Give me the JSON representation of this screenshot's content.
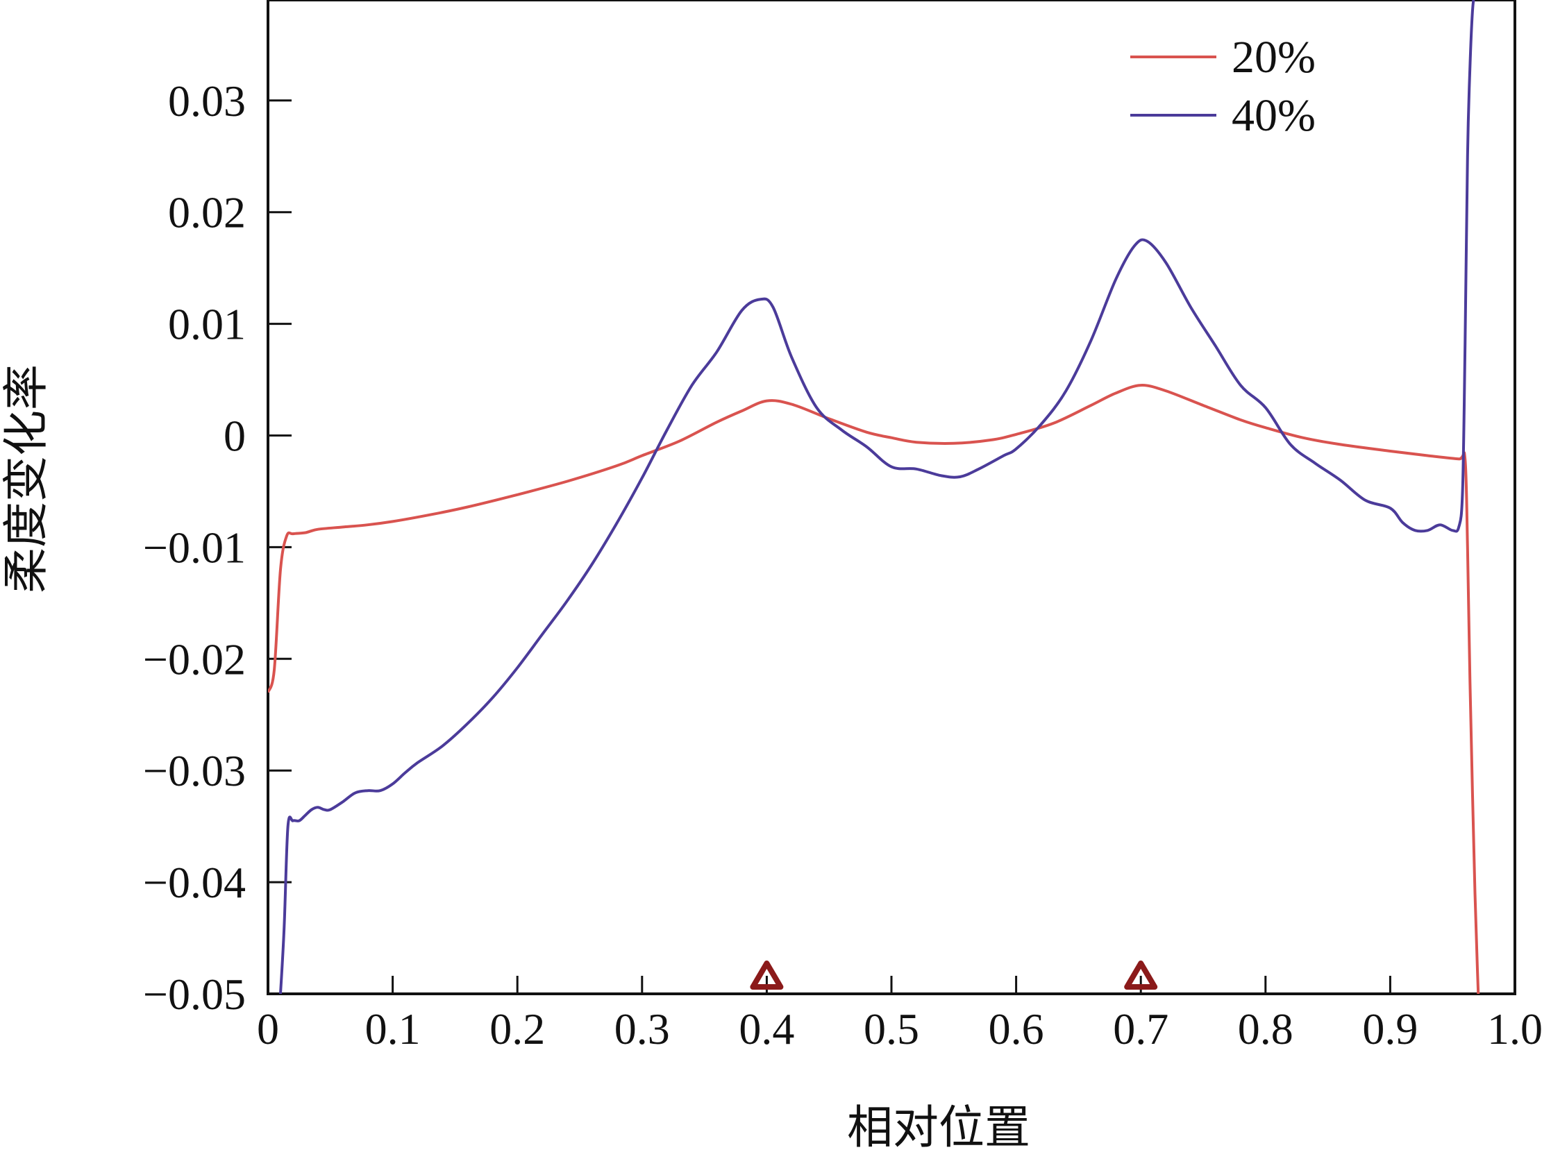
{
  "chart_data": {
    "type": "line",
    "title": "",
    "xlabel": "相对位置",
    "ylabel": "柔度变化率",
    "xlim": [
      0,
      1.0
    ],
    "ylim": [
      -0.05,
      0.039
    ],
    "x_ticks": [
      {
        "value": 0,
        "label": "0"
      },
      {
        "value": 0.1,
        "label": "0.1"
      },
      {
        "value": 0.2,
        "label": "0.2"
      },
      {
        "value": 0.3,
        "label": "0.3"
      },
      {
        "value": 0.4,
        "label": "0.4"
      },
      {
        "value": 0.5,
        "label": "0.5"
      },
      {
        "value": 0.6,
        "label": "0.6"
      },
      {
        "value": 0.7,
        "label": "0.7"
      },
      {
        "value": 0.8,
        "label": "0.8"
      },
      {
        "value": 0.9,
        "label": "0.9"
      },
      {
        "value": 1.0,
        "label": "1.0"
      }
    ],
    "y_ticks": [
      {
        "value": 0.03,
        "label": "0.03"
      },
      {
        "value": 0.02,
        "label": "0.02"
      },
      {
        "value": 0.01,
        "label": "0.01"
      },
      {
        "value": 0,
        "label": "0"
      },
      {
        "value": -0.01,
        "label": "−0.01"
      },
      {
        "value": -0.02,
        "label": "−0.02"
      },
      {
        "value": -0.03,
        "label": "−0.03"
      },
      {
        "value": -0.04,
        "label": "−0.04"
      },
      {
        "value": -0.05,
        "label": "−0.05"
      }
    ],
    "grid": false,
    "legend_position": "top-right",
    "markers": [
      {
        "x": 0.4,
        "shape": "triangle",
        "color": "#8b1a1a"
      },
      {
        "x": 0.7,
        "shape": "triangle",
        "color": "#8b1a1a"
      }
    ],
    "series": [
      {
        "name": "20%",
        "color": "#d9534f",
        "x": [
          0,
          0.005,
          0.01,
          0.015,
          0.02,
          0.03,
          0.04,
          0.06,
          0.08,
          0.1,
          0.13,
          0.16,
          0.2,
          0.24,
          0.28,
          0.3,
          0.33,
          0.36,
          0.38,
          0.4,
          0.42,
          0.45,
          0.48,
          0.5,
          0.52,
          0.55,
          0.58,
          0.6,
          0.63,
          0.66,
          0.68,
          0.7,
          0.72,
          0.75,
          0.78,
          0.8,
          0.83,
          0.86,
          0.9,
          0.93,
          0.955,
          0.96,
          0.962,
          0.964,
          0.966,
          0.968,
          0.97,
          0.972
        ],
        "y": [
          -0.023,
          -0.021,
          -0.012,
          -0.009,
          -0.0088,
          -0.0087,
          -0.0084,
          -0.0082,
          -0.008,
          -0.0077,
          -0.0071,
          -0.0064,
          -0.0053,
          -0.0041,
          -0.0027,
          -0.0018,
          -0.0005,
          0.0012,
          0.0022,
          0.0031,
          0.0028,
          0.0015,
          0.0003,
          -0.0002,
          -0.0006,
          -0.0007,
          -0.0004,
          0.0001,
          0.0011,
          0.0027,
          0.0038,
          0.0045,
          0.004,
          0.0027,
          0.0014,
          0.0007,
          -0.0002,
          -0.0008,
          -0.0014,
          -0.0018,
          -0.0021,
          -0.0021,
          -0.01,
          -0.022,
          -0.032,
          -0.041,
          -0.048,
          -0.054
        ]
      },
      {
        "name": "40%",
        "color": "#4b3b9a",
        "x": [
          0.01,
          0.013,
          0.016,
          0.02,
          0.025,
          0.03,
          0.035,
          0.04,
          0.045,
          0.05,
          0.06,
          0.07,
          0.08,
          0.09,
          0.1,
          0.11,
          0.12,
          0.14,
          0.16,
          0.18,
          0.2,
          0.22,
          0.24,
          0.26,
          0.28,
          0.3,
          0.32,
          0.34,
          0.36,
          0.38,
          0.395,
          0.405,
          0.42,
          0.44,
          0.46,
          0.48,
          0.5,
          0.52,
          0.54,
          0.555,
          0.57,
          0.59,
          0.6,
          0.62,
          0.64,
          0.66,
          0.68,
          0.695,
          0.705,
          0.72,
          0.74,
          0.76,
          0.78,
          0.8,
          0.82,
          0.84,
          0.86,
          0.88,
          0.9,
          0.91,
          0.92,
          0.93,
          0.94,
          0.95,
          0.955,
          0.958,
          0.96,
          0.962,
          0.964,
          0.966,
          0.968
        ],
        "y": [
          -0.05,
          -0.044,
          -0.035,
          -0.0345,
          -0.0345,
          -0.034,
          -0.0335,
          -0.0333,
          -0.0335,
          -0.0335,
          -0.0328,
          -0.032,
          -0.0318,
          -0.0318,
          -0.0312,
          -0.0302,
          -0.0293,
          -0.0278,
          -0.0258,
          -0.0235,
          -0.0208,
          -0.0178,
          -0.0148,
          -0.0115,
          -0.0078,
          -0.0038,
          0.0005,
          0.0045,
          0.0075,
          0.0112,
          0.0122,
          0.0115,
          0.007,
          0.0025,
          0.0005,
          -0.001,
          -0.0028,
          -0.003,
          -0.0036,
          -0.0037,
          -0.003,
          -0.0018,
          -0.0012,
          0.001,
          0.004,
          0.0085,
          0.014,
          0.017,
          0.0174,
          0.0155,
          0.0115,
          0.008,
          0.0045,
          0.0025,
          -0.0008,
          -0.0025,
          -0.004,
          -0.0058,
          -0.0065,
          -0.0078,
          -0.0085,
          -0.0085,
          -0.008,
          -0.0085,
          -0.0082,
          -0.005,
          0.008,
          0.025,
          0.033,
          0.038,
          0.04
        ]
      }
    ]
  }
}
